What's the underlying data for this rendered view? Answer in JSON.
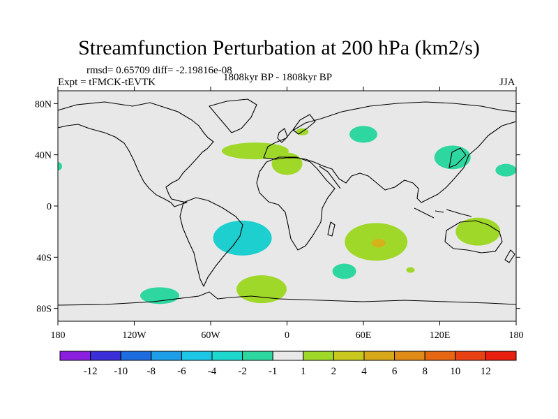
{
  "title": "Streamfunction Perturbation at 200 hPa (km2/s)",
  "stats_line": "rmsd= 0.65709 diff= -2.19816e-08",
  "experiment": "Expt = tFMCK-tEVTK",
  "period": "1808kyr BP - 1808kyr BP",
  "season": "JJA",
  "map": {
    "lat_ticks": [
      {
        "lat": 80,
        "label": "80N"
      },
      {
        "lat": 40,
        "label": "40N"
      },
      {
        "lat": 0,
        "label": "0"
      },
      {
        "lat": -40,
        "label": "40S"
      },
      {
        "lat": -80,
        "label": "80S"
      }
    ],
    "lon_ticks": [
      {
        "lon": -180,
        "label": "180"
      },
      {
        "lon": -120,
        "label": "120W"
      },
      {
        "lon": -60,
        "label": "60W"
      },
      {
        "lon": 0,
        "label": "0"
      },
      {
        "lon": 60,
        "label": "60E"
      },
      {
        "lon": 120,
        "label": "120E"
      },
      {
        "lon": 180,
        "label": "180"
      }
    ],
    "lat_range": [
      -90,
      90
    ],
    "lon_range": [
      -180,
      180
    ],
    "ocean_color": "#e8e8e8"
  },
  "anomalies": [
    {
      "name": "n-atlantic-positive",
      "value": 1.5,
      "color": "#a0d82a",
      "lon": -25,
      "lat": 43
    },
    {
      "name": "w-mediterranean-positive",
      "value": 1.5,
      "color": "#a0d82a",
      "lon": 0,
      "lat": 33
    },
    {
      "name": "n-europe-positive",
      "value": 1.5,
      "color": "#a0d82a",
      "lon": 12,
      "lat": 58
    },
    {
      "name": "siberia-negative",
      "value": -1.5,
      "color": "#2ed6a0",
      "lon": 60,
      "lat": 56
    },
    {
      "name": "east-asia-negative",
      "value": -1.5,
      "color": "#2ed6a0",
      "lon": 130,
      "lat": 38
    },
    {
      "name": "dateline-negative",
      "value": -1.5,
      "color": "#2ed6a0",
      "lon": 172,
      "lat": 28
    },
    {
      "name": "south-atlantic-negative",
      "value": -3,
      "color": "#1ecfd0",
      "lon": -35,
      "lat": -25
    },
    {
      "name": "indian-ocean-positive",
      "value": 2,
      "color": "#a0d82a",
      "lon": 70,
      "lat": -28
    },
    {
      "name": "indian-ocean-core",
      "value": 3,
      "color": "#d6b21a",
      "lon": 72,
      "lat": -29
    },
    {
      "name": "australia-positive",
      "value": 1.5,
      "color": "#a0d82a",
      "lon": 150,
      "lat": -20
    },
    {
      "name": "s-indian-negative",
      "value": -1.5,
      "color": "#2ed6a0",
      "lon": 45,
      "lat": -51
    },
    {
      "name": "se-indian-positive",
      "value": 1.5,
      "color": "#a0d82a",
      "lon": 97,
      "lat": -50
    },
    {
      "name": "se-pacific-negative",
      "value": -1.5,
      "color": "#2ed6a0",
      "lon": -100,
      "lat": -70
    },
    {
      "name": "s-atlantic-high-lat-positive",
      "value": 1.5,
      "color": "#a0d82a",
      "lon": -20,
      "lat": -65
    },
    {
      "name": "w-pacific-edge-negative",
      "value": -1.5,
      "color": "#2ed6a0",
      "lon": -180,
      "lat": 31
    }
  ],
  "colorbar": {
    "colors": [
      "#8a1fe0",
      "#3a2fd8",
      "#1e6de0",
      "#1e9ee8",
      "#1ec6e6",
      "#1ed8d0",
      "#2ed6a0",
      "#e8e8e8",
      "#a0d82a",
      "#c8c81e",
      "#d6a81a",
      "#e08a18",
      "#e66614",
      "#e84214",
      "#e82010"
    ],
    "labels": [
      "-12",
      "-10",
      "-8",
      "-6",
      "-4",
      "-2",
      "-1",
      "1",
      "2",
      "4",
      "6",
      "8",
      "10",
      "12"
    ]
  }
}
